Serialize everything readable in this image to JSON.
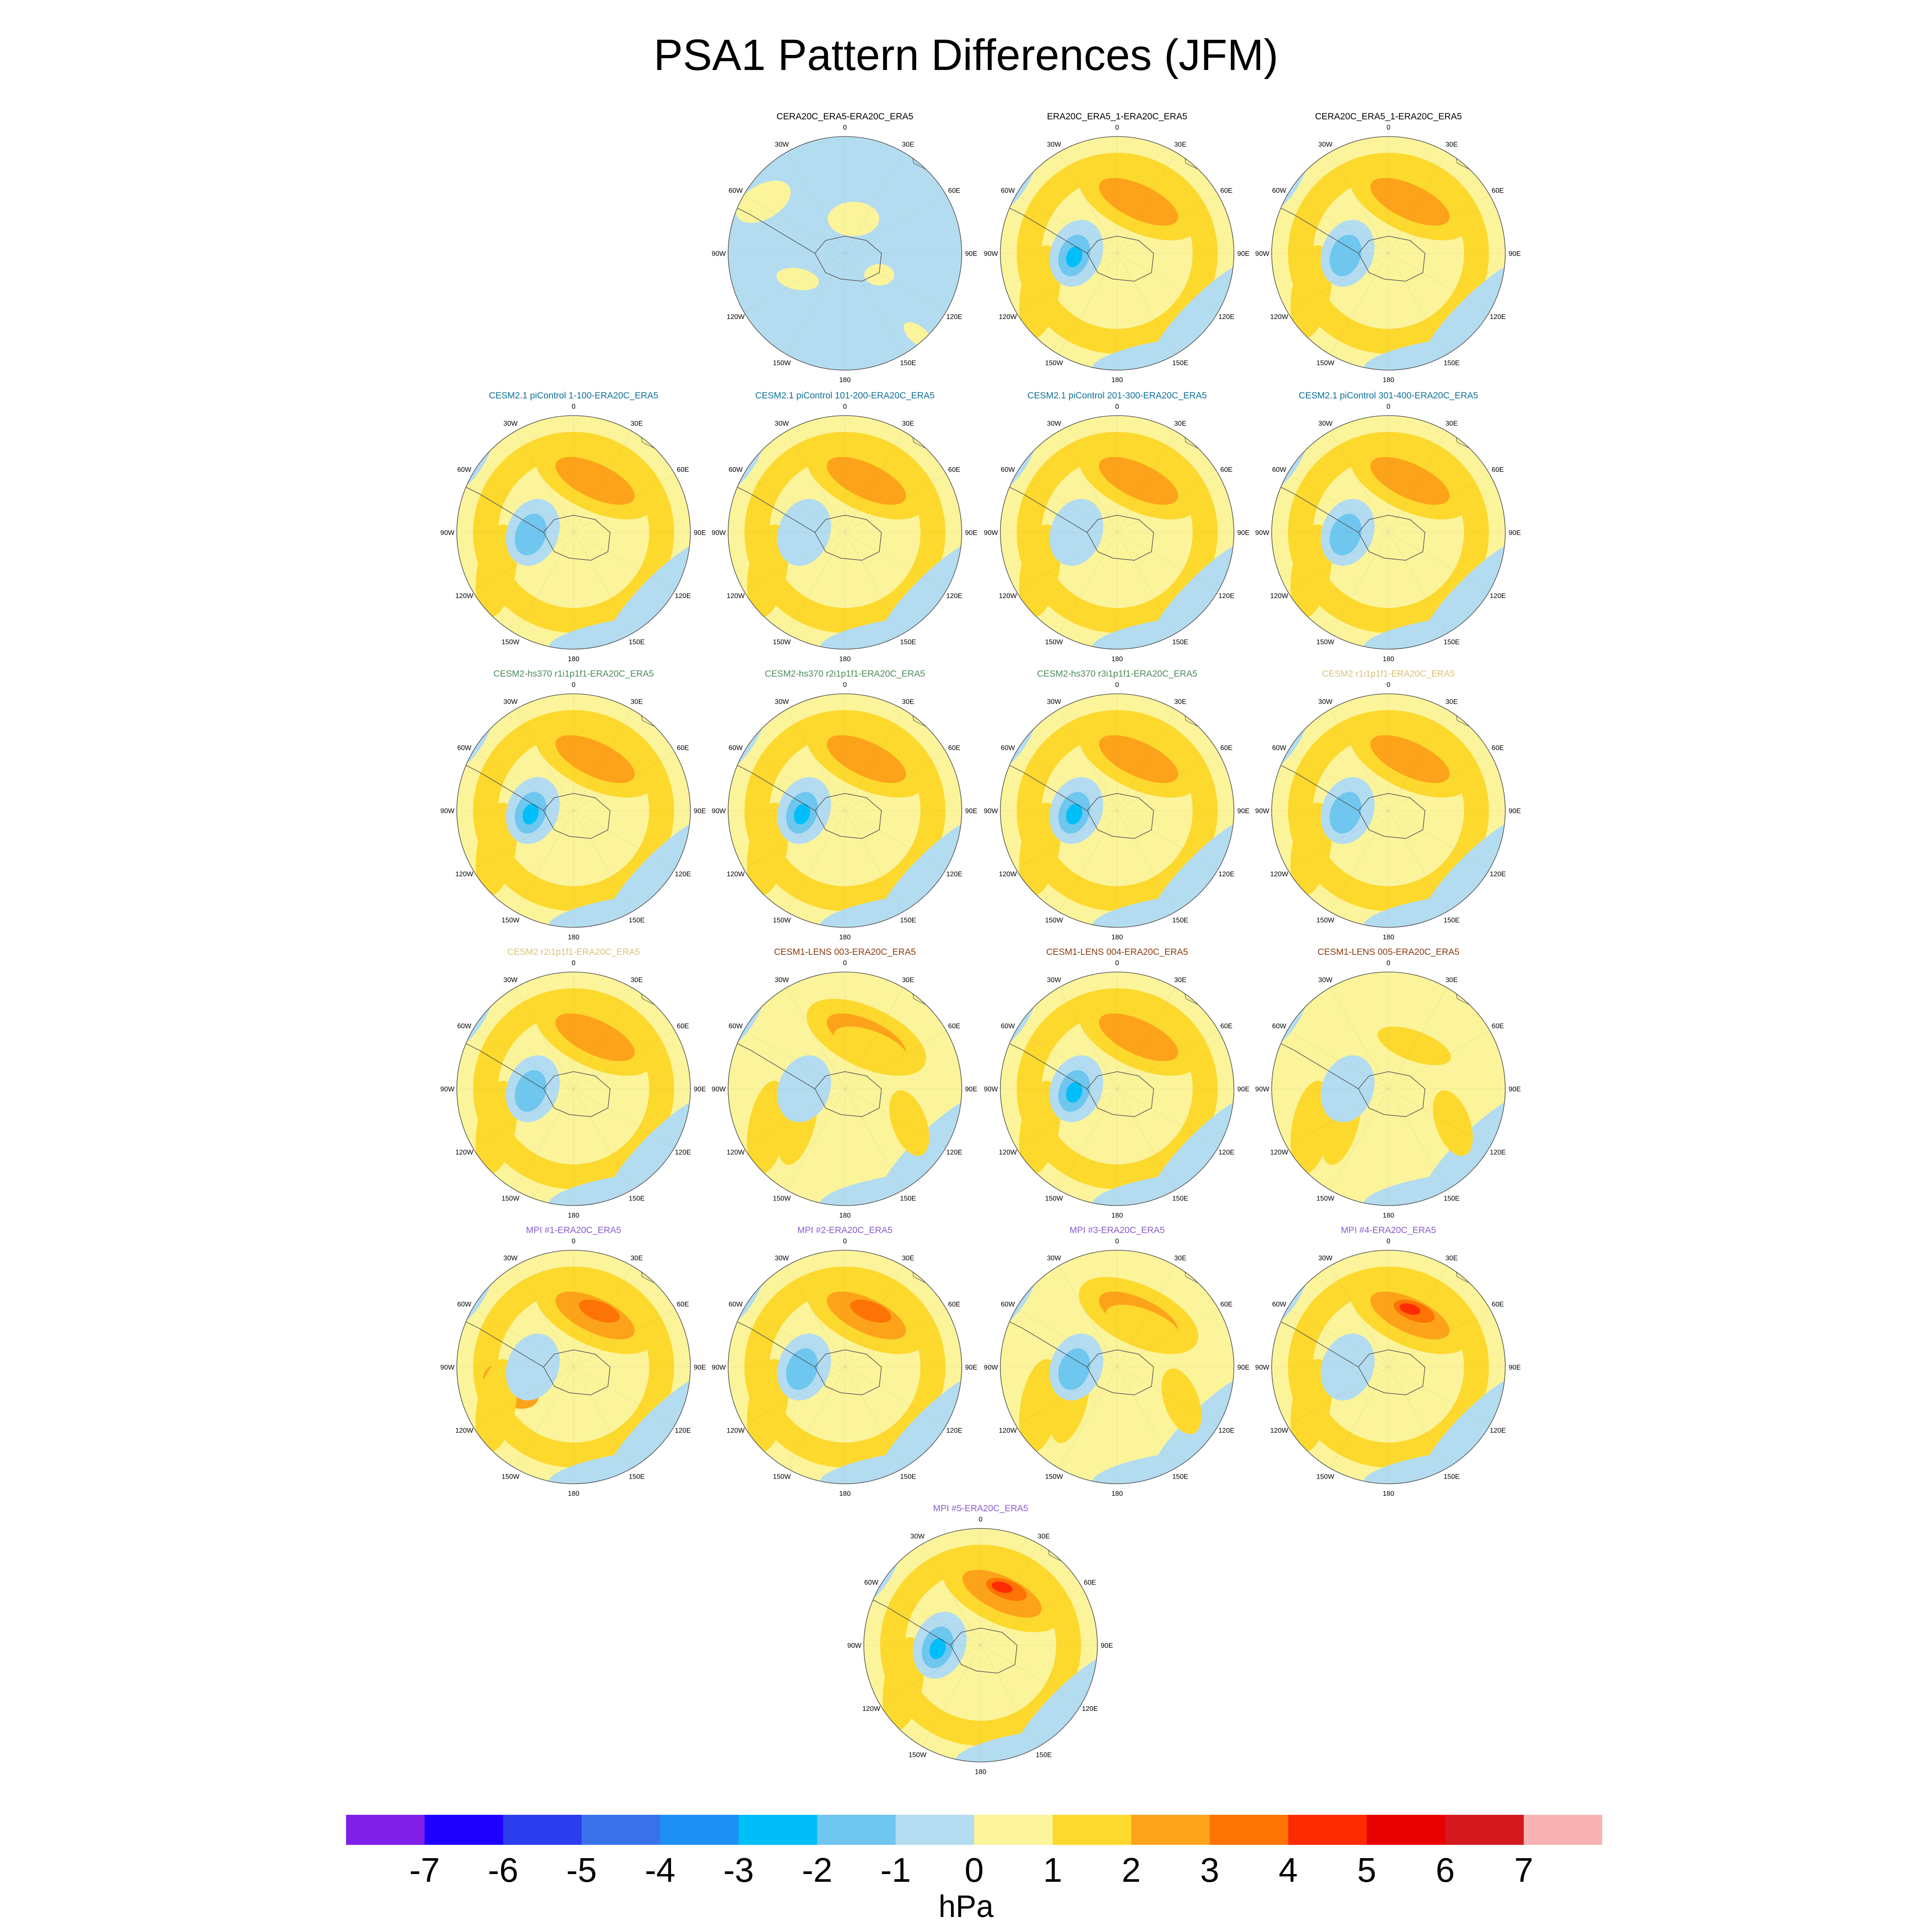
{
  "title": "PSA1 Pattern Differences (JFM)",
  "longitude_labels": [
    "0",
    "30E",
    "60E",
    "90E",
    "120E",
    "150E",
    "180",
    "150W",
    "120W",
    "90W",
    "60W",
    "30W"
  ],
  "panels": [
    {
      "title": "CERA20C_ERA5-ERA20C_ERA5",
      "color": "#000000",
      "max": 1,
      "min": -1,
      "pattern": "weak"
    },
    {
      "title": "ERA20C_ERA5_1-ERA20C_ERA5",
      "color": "#000000",
      "max": 2,
      "min": -3,
      "pattern": "psa"
    },
    {
      "title": "CERA20C_ERA5_1-ERA20C_ERA5",
      "color": "#000000",
      "max": 2,
      "min": -2,
      "pattern": "psa"
    },
    {
      "title": "CESM2.1 piControl 1-100-ERA20C_ERA5",
      "color": "#0e6f9a",
      "max": 2,
      "min": -2,
      "pattern": "psa"
    },
    {
      "title": "CESM2.1 piControl 101-200-ERA20C_ERA5",
      "color": "#0e6f9a",
      "max": 2,
      "min": -1,
      "pattern": "psa"
    },
    {
      "title": "CESM2.1 piControl 201-300-ERA20C_ERA5",
      "color": "#0e6f9a",
      "max": 2,
      "min": -1,
      "pattern": "psa"
    },
    {
      "title": "CESM2.1 piControl 301-400-ERA20C_ERA5",
      "color": "#0e6f9a",
      "max": 2,
      "min": -2,
      "pattern": "psa"
    },
    {
      "title": "CESM2-hs370 r1i1p1f1-ERA20C_ERA5",
      "color": "#4e8a5a",
      "max": 2,
      "min": -3,
      "pattern": "psa"
    },
    {
      "title": "CESM2-hs370 r2i1p1f1-ERA20C_ERA5",
      "color": "#4e8a5a",
      "max": 2,
      "min": -3,
      "pattern": "psa"
    },
    {
      "title": "CESM2-hs370 r3i1p1f1-ERA20C_ERA5",
      "color": "#4e8a5a",
      "max": 2,
      "min": -3,
      "pattern": "psa"
    },
    {
      "title": "CESM2 r1i1p1f1-ERA20C_ERA5",
      "color": "#d7c27a",
      "max": 2,
      "min": -2,
      "pattern": "psa"
    },
    {
      "title": "CESM2 r2i1p1f1-ERA20C_ERA5",
      "color": "#d7c27a",
      "max": 2,
      "min": -2,
      "pattern": "psa"
    },
    {
      "title": "CESM1-LENS 003-ERA20C_ERA5",
      "color": "#8a3a10",
      "max": 2,
      "min": -1,
      "pattern": "weak"
    },
    {
      "title": "CESM1-LENS 004-ERA20C_ERA5",
      "color": "#8a3a10",
      "max": 2,
      "min": -3,
      "pattern": "psa"
    },
    {
      "title": "CESM1-LENS 005-ERA20C_ERA5",
      "color": "#8a3a10",
      "max": 1,
      "min": -1,
      "pattern": "weak"
    },
    {
      "title": "MPI #1-ERA20C_ERA5",
      "color": "#8a5ccc",
      "max": 3,
      "min": -1,
      "pattern": "mpi1"
    },
    {
      "title": "MPI #2-ERA20C_ERA5",
      "color": "#8a5ccc",
      "max": 3,
      "min": -2,
      "pattern": "psa"
    },
    {
      "title": "MPI #3-ERA20C_ERA5",
      "color": "#8a5ccc",
      "max": 2,
      "min": -2,
      "pattern": "weak"
    },
    {
      "title": "MPI #4-ERA20C_ERA5",
      "color": "#8a5ccc",
      "max": 4,
      "min": -1,
      "pattern": "strong"
    },
    {
      "title": "MPI #5-ERA20C_ERA5",
      "color": "#8a5ccc",
      "max": 4,
      "min": -3,
      "pattern": "strong"
    }
  ],
  "chart_data": {
    "type": "heatmap",
    "title": "PSA1 Pattern Differences (JFM)",
    "projection": "south polar stereographic",
    "colorbar": {
      "units": "hPa",
      "tick_labels": [
        "-7",
        "-6",
        "-5",
        "-4",
        "-3",
        "-2",
        "-1",
        "0",
        "1",
        "2",
        "3",
        "4",
        "5",
        "6",
        "7"
      ],
      "colors": [
        "#7f1fe8",
        "#1e00ff",
        "#2b3ded",
        "#3a72ec",
        "#1e8ff5",
        "#00bff8",
        "#6fc6ef",
        "#b3dcf1",
        "#fbf49a",
        "#fdd82d",
        "#fca31a",
        "#fd7404",
        "#ff2b00",
        "#e70000",
        "#d4191e",
        "#f9b3b3"
      ]
    },
    "panel_count": 20,
    "layout": "rows of 3, 4, 4, 4, 4, 1"
  }
}
